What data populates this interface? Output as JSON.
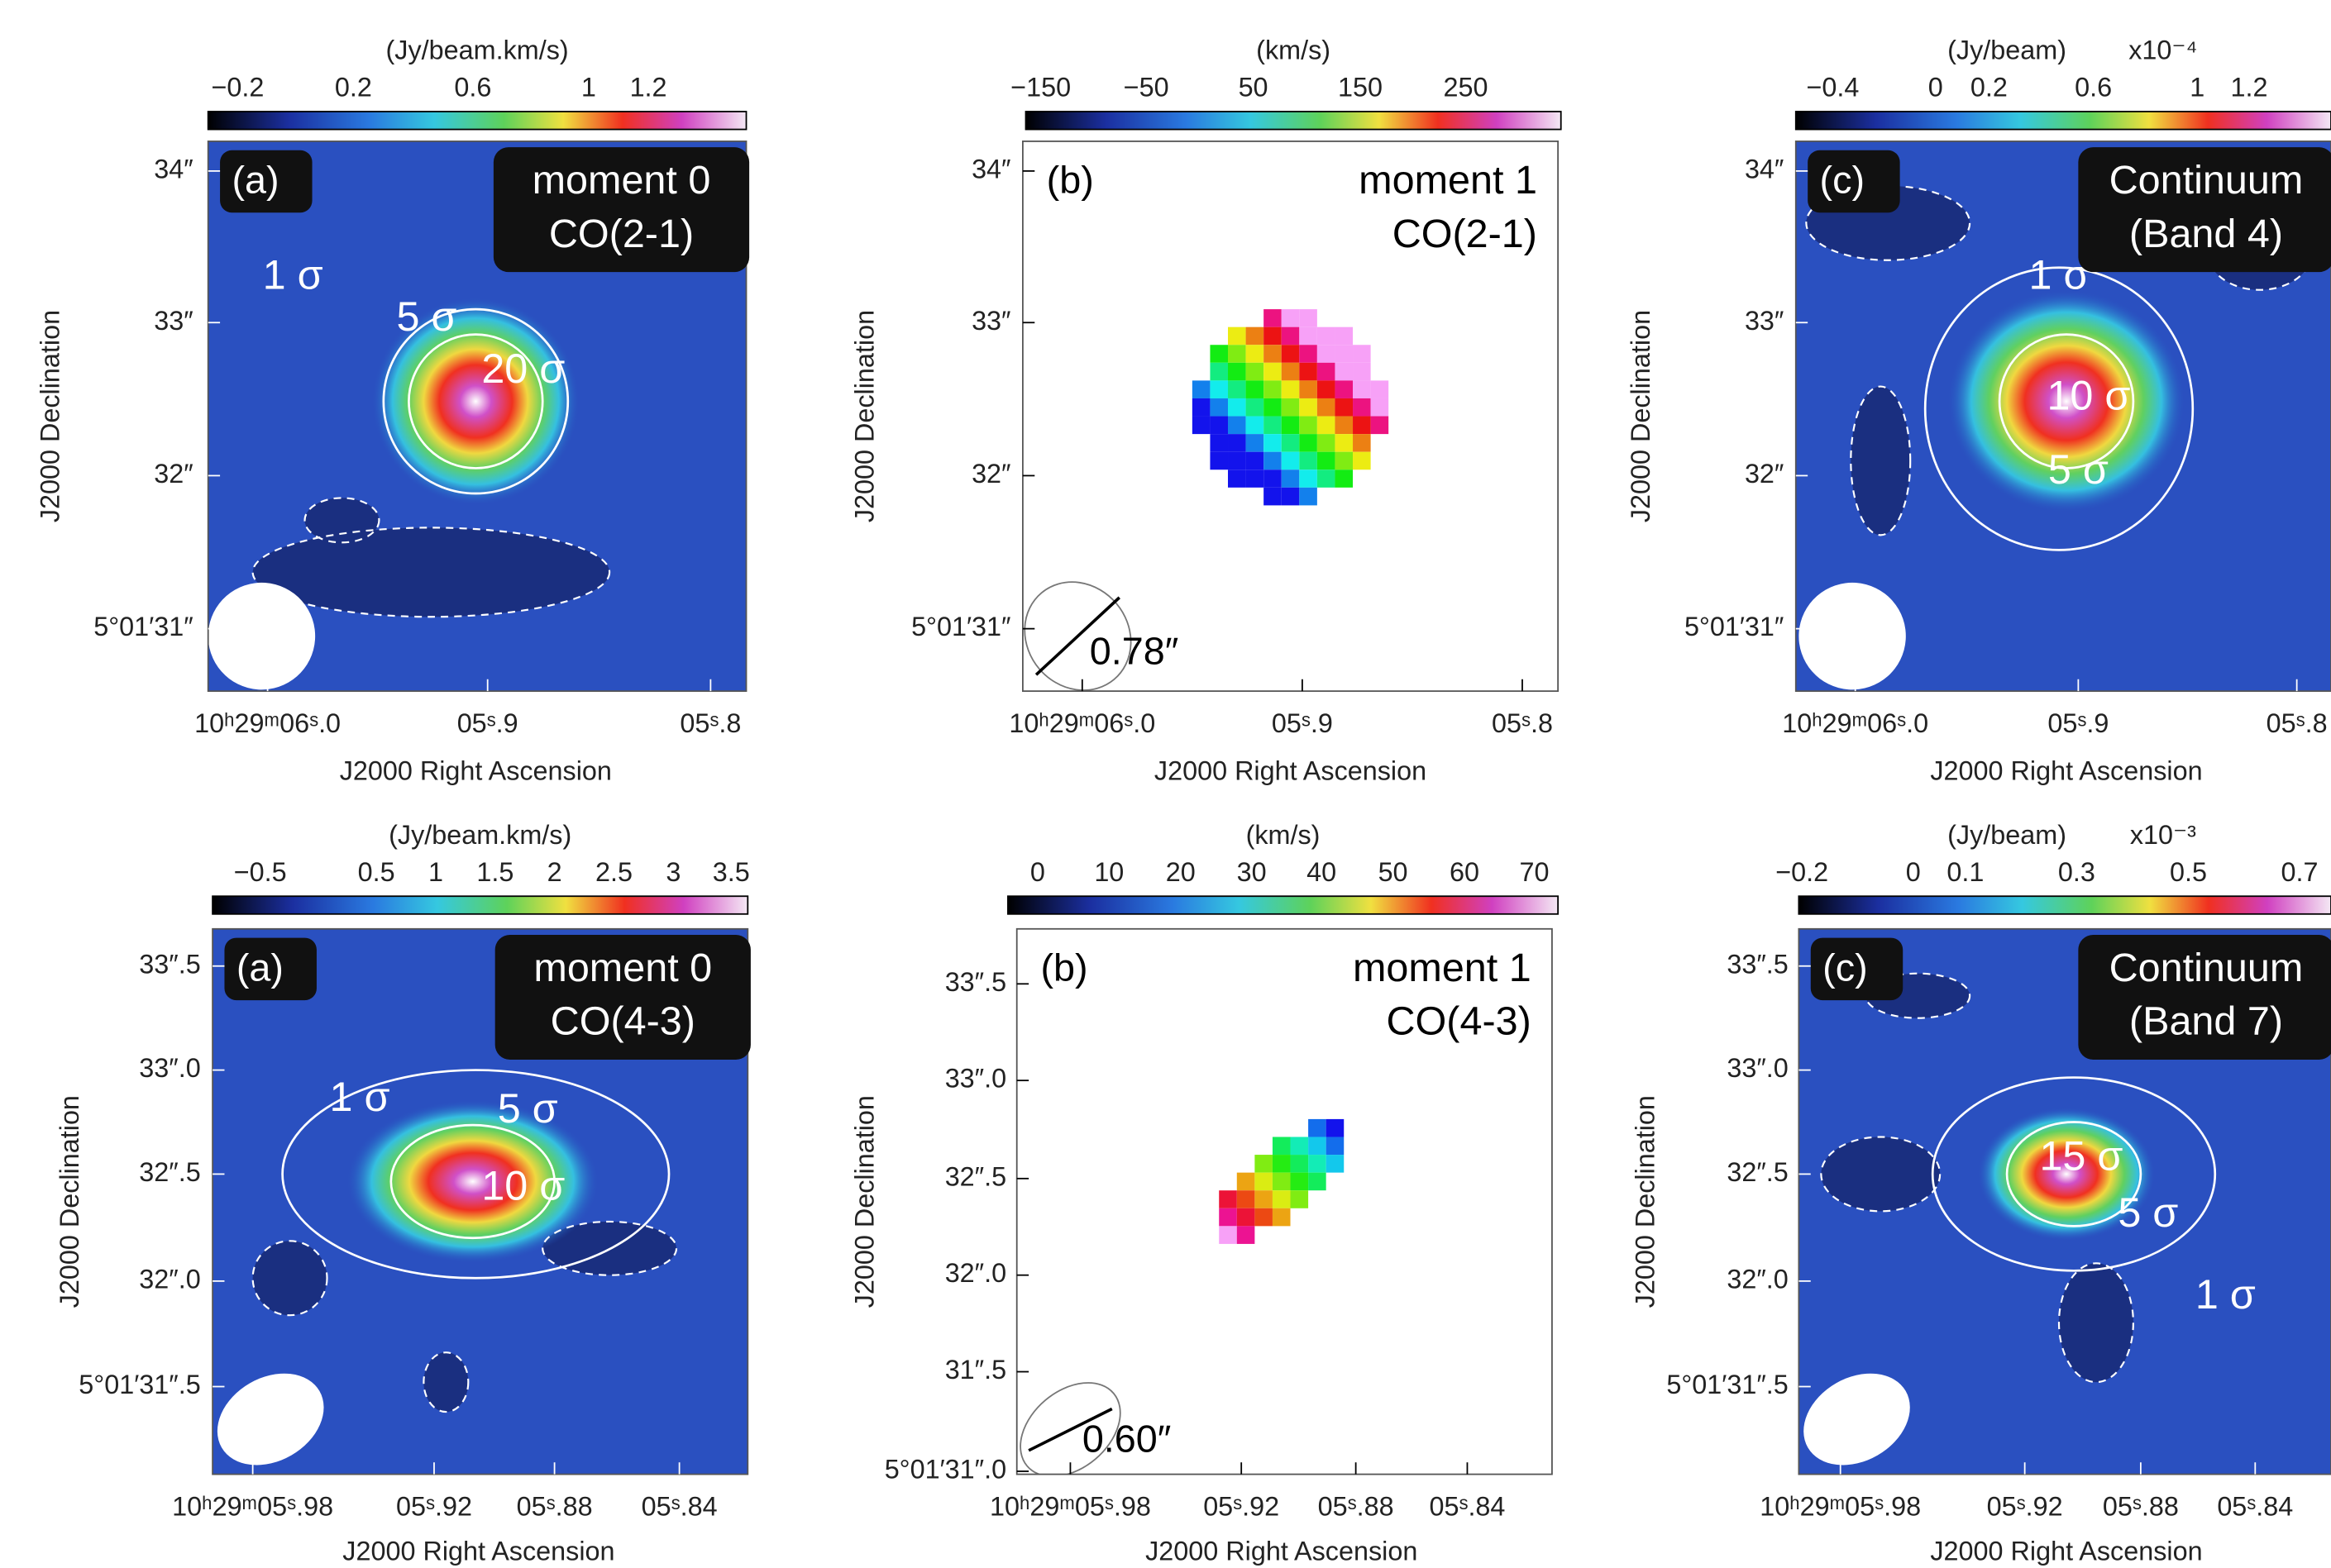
{
  "panels": [
    {
      "colorbar_unit": "(Jy/beam.km/s)",
      "colorbar_ticks": [
        "−0.2",
        "0.2",
        "0.6",
        "1",
        "1.2"
      ],
      "panel_label": "(a)",
      "title": [
        "moment 0",
        "CO(2-1)"
      ],
      "contour_labels": [
        "1 σ",
        "5 σ",
        "20 σ"
      ],
      "y_ticks": [
        "34″",
        "33″",
        "32″",
        "5°01′31″"
      ],
      "x_ticks": [
        "10ʰ29ᵐ06ˢ.0",
        "05ˢ.9",
        "05ˢ.8"
      ],
      "x_label": "J2000 Right Ascension",
      "y_label": "J2000 Declination"
    },
    {
      "colorbar_unit": "(km/s)",
      "colorbar_ticks": [
        "−150",
        "−50",
        "50",
        "150",
        "250"
      ],
      "panel_label": "(b)",
      "title": [
        "moment 1",
        "CO(2-1)"
      ],
      "beam_label": "0.78″",
      "y_ticks": [
        "34″",
        "33″",
        "32″",
        "5°01′31″"
      ],
      "x_ticks": [
        "10ʰ29ᵐ06ˢ.0",
        "05ˢ.9",
        "05ˢ.8"
      ],
      "x_label": "J2000 Right Ascension",
      "y_label": "J2000 Declination"
    },
    {
      "colorbar_unit": "(Jy/beam)",
      "colorbar_scale": "x10⁻⁴",
      "colorbar_ticks": [
        "−0.4",
        "0",
        "0.2",
        "0.6",
        "1",
        "1.2"
      ],
      "panel_label": "(c)",
      "title": [
        "Continuum",
        "(Band 4)"
      ],
      "contour_labels": [
        "1 σ",
        "10 σ",
        "5 σ"
      ],
      "y_ticks": [
        "34″",
        "33″",
        "32″",
        "5°01′31″"
      ],
      "x_ticks": [
        "10ʰ29ᵐ06ˢ.0",
        "05ˢ.9",
        "05ˢ.8"
      ],
      "x_label": "J2000 Right Ascension",
      "y_label": "J2000 Declination"
    },
    {
      "colorbar_unit": "(Jy/beam.km/s)",
      "colorbar_ticks": [
        "−0.5",
        "0.5",
        "1",
        "1.5",
        "2",
        "2.5",
        "3",
        "3.5"
      ],
      "panel_label": "(a)",
      "title": [
        "moment 0",
        "CO(4-3)"
      ],
      "contour_labels": [
        "1 σ",
        "5 σ",
        "10 σ"
      ],
      "y_ticks": [
        "33″.5",
        "33″.0",
        "32″.5",
        "32″.0",
        "5°01′31″.5"
      ],
      "x_ticks": [
        "10ʰ29ᵐ05ˢ.98",
        "05ˢ.92",
        "05ˢ.88",
        "05ˢ.84"
      ],
      "x_label": "J2000 Right Ascension",
      "y_label": "J2000 Declination"
    },
    {
      "colorbar_unit": "(km/s)",
      "colorbar_ticks": [
        "0",
        "10",
        "20",
        "30",
        "40",
        "50",
        "60",
        "70"
      ],
      "panel_label": "(b)",
      "title": [
        "moment 1",
        "CO(4-3)"
      ],
      "beam_label": "0.60″",
      "y_ticks": [
        "33″.5",
        "33″.0",
        "32″.5",
        "32″.0",
        "31″.5",
        "5°01′31″.0"
      ],
      "x_ticks": [
        "10ʰ29ᵐ05ˢ.98",
        "05ˢ.92",
        "05ˢ.88",
        "05ˢ.84"
      ],
      "x_label": "J2000 Right Ascension",
      "y_label": "J2000 Declination"
    },
    {
      "colorbar_unit": "(Jy/beam)",
      "colorbar_scale": "x10⁻³",
      "colorbar_ticks": [
        "−0.2",
        "0",
        "0.1",
        "0.3",
        "0.5",
        "0.7"
      ],
      "panel_label": "(c)",
      "title": [
        "Continuum",
        "(Band 7)"
      ],
      "contour_labels": [
        "15 σ",
        "5 σ",
        "1 σ"
      ],
      "y_ticks": [
        "33″.5",
        "33″.0",
        "32″.5",
        "32″.0",
        "5°01′31″.5"
      ],
      "x_ticks": [
        "10ʰ29ᵐ05ˢ.98",
        "05ˢ.92",
        "05ˢ.88",
        "05ˢ.84"
      ],
      "x_label": "J2000 Right Ascension",
      "y_label": "J2000 Declination"
    }
  ]
}
